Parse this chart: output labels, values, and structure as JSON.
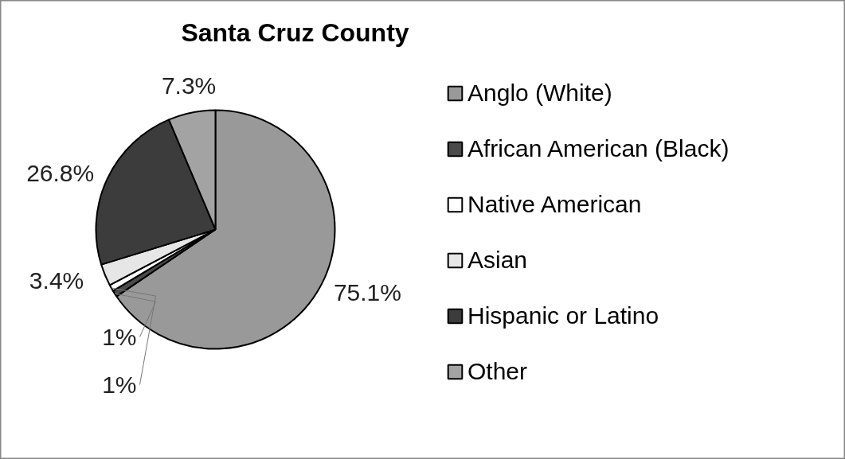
{
  "chart_data": {
    "type": "pie",
    "title": "Santa Cruz County",
    "categories": [
      "Anglo (White)",
      "African American (Black)",
      "Native American",
      "Asian",
      "Hispanic or Latino",
      "Other"
    ],
    "values": [
      75.1,
      1,
      1,
      3.4,
      26.8,
      7.3
    ],
    "colors": [
      "#999999",
      "#4a4a4a",
      "#ffffff",
      "#e6e6e6",
      "#3c3c3c",
      "#a3a3a3"
    ],
    "value_labels": [
      "75.1%",
      "1%",
      "1%",
      "3.4%",
      "26.8%",
      "7.3%"
    ],
    "legend": "right"
  }
}
